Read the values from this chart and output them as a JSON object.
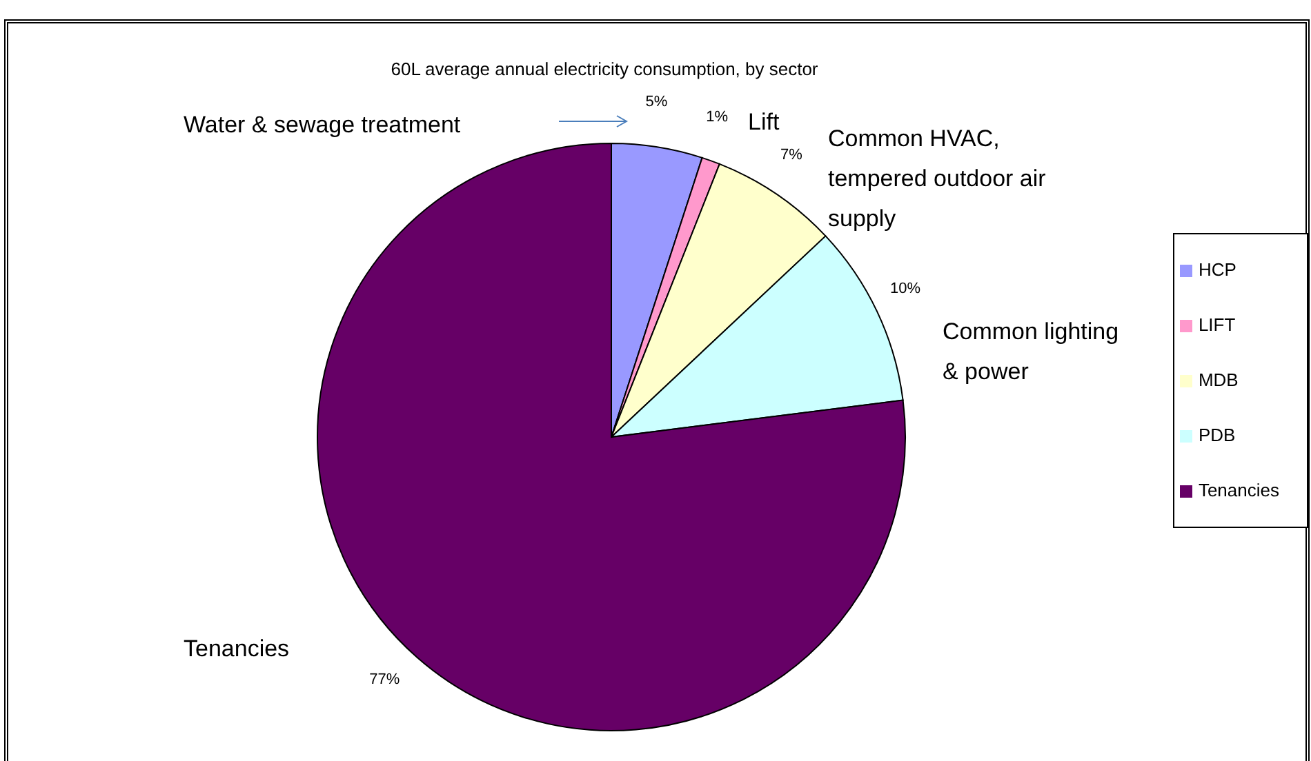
{
  "chart_data": {
    "type": "pie",
    "title": "60L average annual electricity consumption, by sector",
    "categories": [
      "HCP",
      "LIFT",
      "MDB",
      "PDB",
      "Tenancies"
    ],
    "values": [
      5,
      1,
      7,
      10,
      77
    ],
    "value_labels": [
      "5%",
      "1%",
      "7%",
      "10%",
      "77%"
    ],
    "colors": [
      "#9999ff",
      "#ff99cc",
      "#ffffcc",
      "#ccffff",
      "#660066"
    ],
    "legend": "right",
    "annotations": [
      "Water & sewage treatment",
      "Lift",
      "Common HVAC, tempered outdoor air supply",
      "Common lighting & power",
      "Tenancies"
    ]
  }
}
